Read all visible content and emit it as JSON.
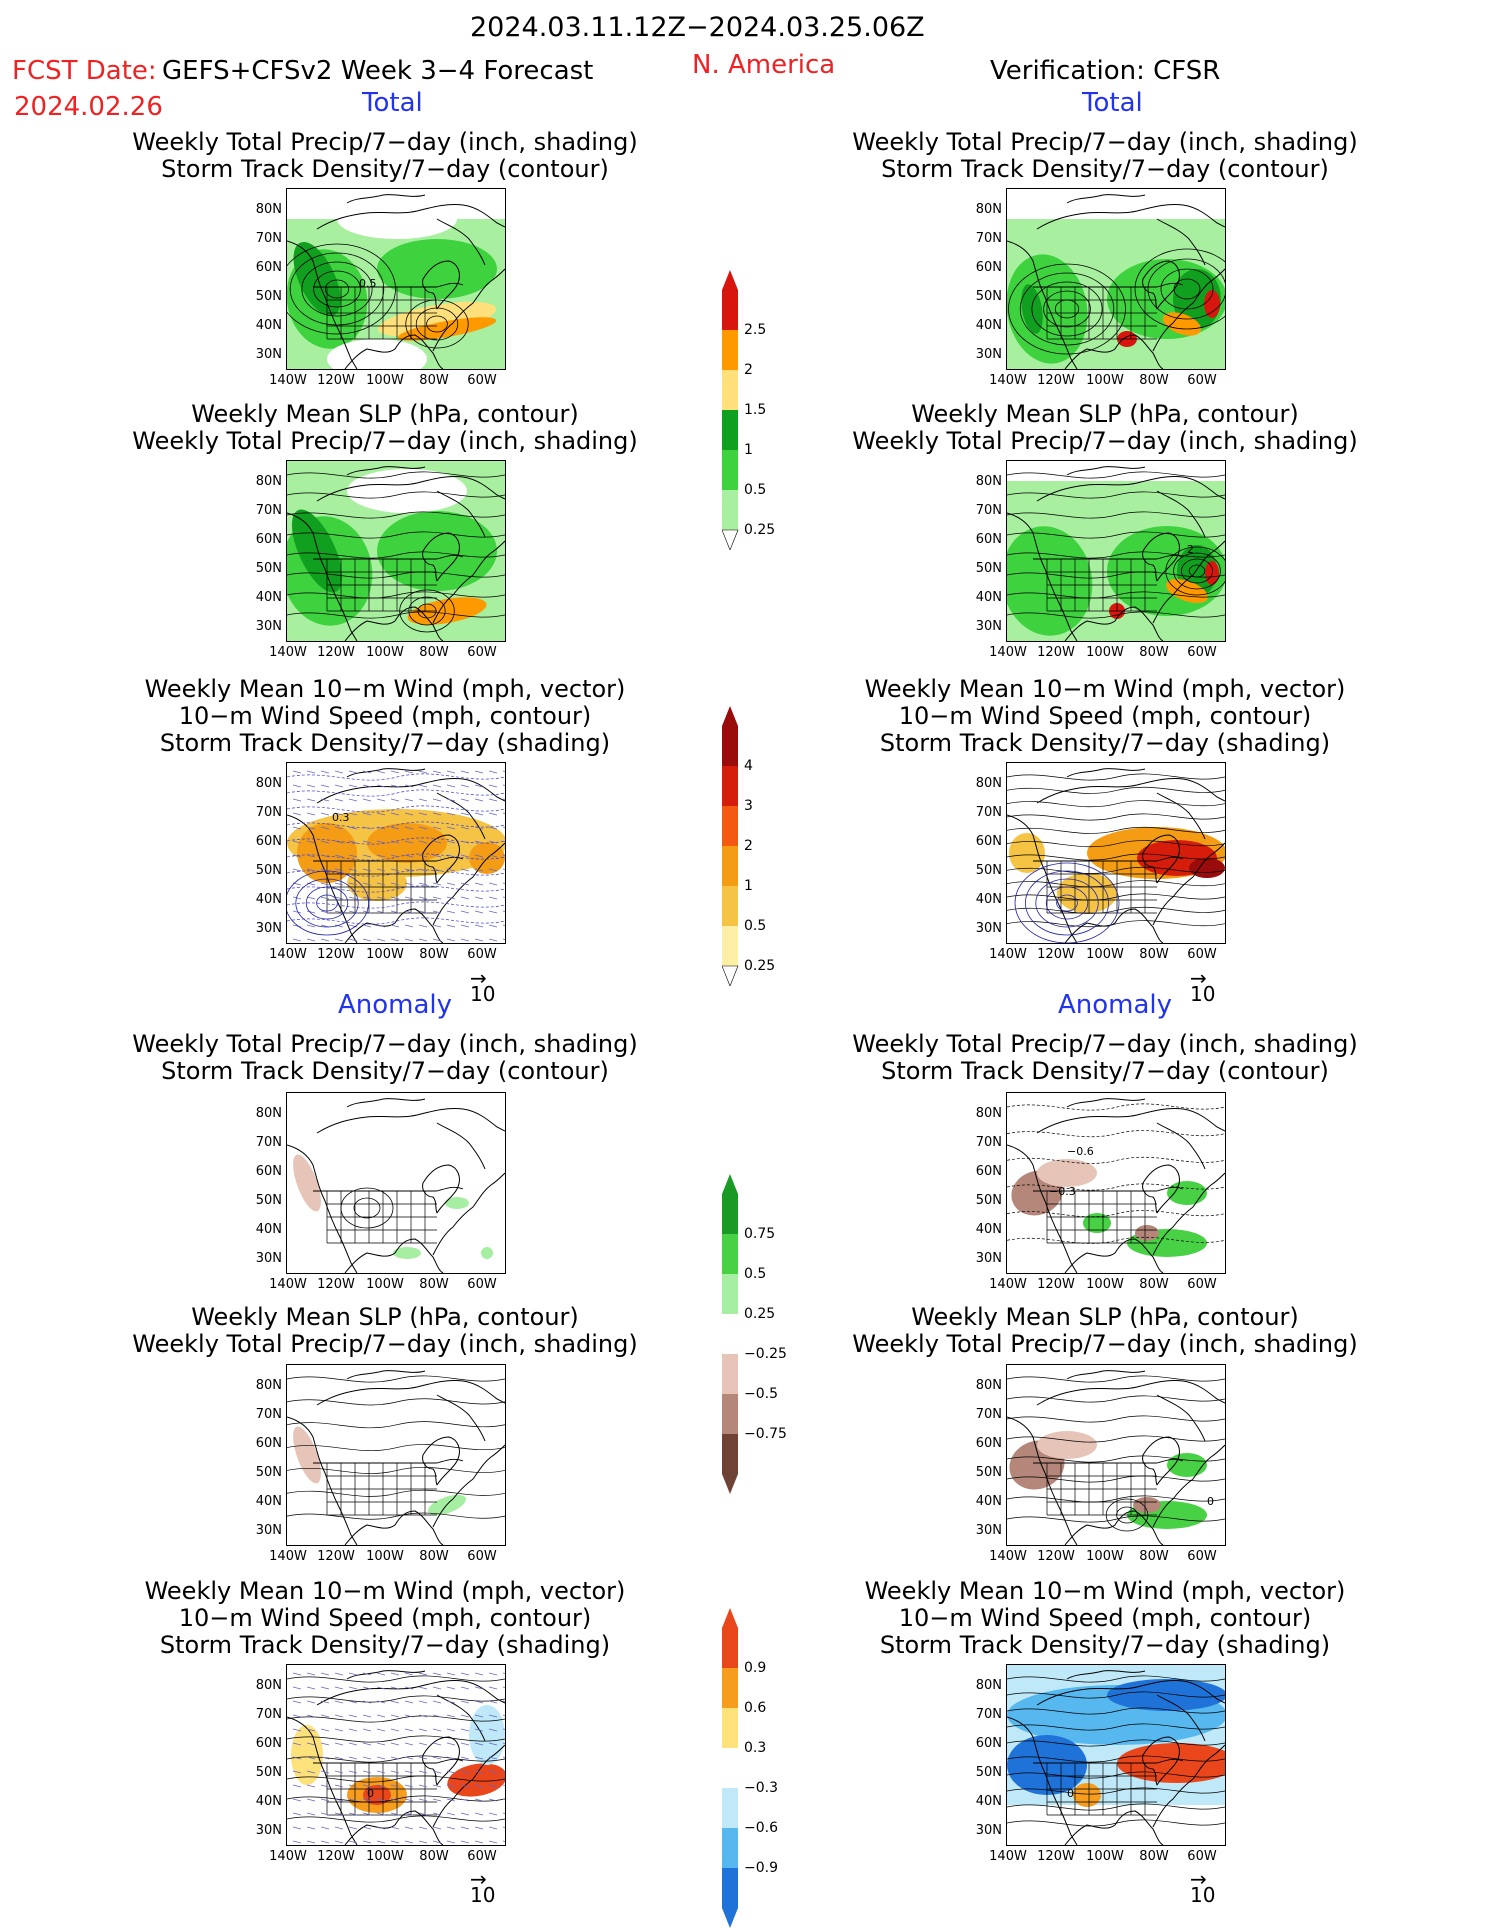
{
  "header": {
    "period": "2024.03.11.12Z−2024.03.25.06Z",
    "fcst_label": "FCST Date:",
    "model": "GEFS+CFSv2 Week 3−4 Forecast",
    "fcst_date": "2024.02.26",
    "region": "N. America",
    "verification": "Verification: CFSR"
  },
  "sections": {
    "total": "Total",
    "anomaly": "Anomaly"
  },
  "titles": {
    "precip_std": [
      "Weekly Total Precip/7−day (inch, shading)",
      "Storm Track Density/7−day (contour)"
    ],
    "slp_precip": [
      "Weekly Mean SLP (hPa, contour)",
      "Weekly Total Precip/7−day (inch, shading)"
    ],
    "wind_std": [
      "Weekly Mean 10−m Wind (mph, vector)",
      "10−m Wind Speed (mph, contour)",
      "Storm Track Density/7−day (shading)"
    ]
  },
  "axes": {
    "lat_ticks": [
      "80N",
      "70N",
      "60N",
      "50N",
      "40N",
      "30N"
    ],
    "lon_ticks": [
      "140W",
      "120W",
      "100W",
      "80W",
      "60W"
    ]
  },
  "vector_ref": "10",
  "colorbars": {
    "precip_total": {
      "labels": [
        "2.5",
        "2",
        "1.5",
        "1",
        "0.5",
        "0.25"
      ],
      "colors": [
        "#d9160d",
        "#ff9900",
        "#ffe07a",
        "#119f1f",
        "#3ed23e",
        "#a8f0a0"
      ]
    },
    "std_total": {
      "labels": [
        "4",
        "3",
        "2",
        "1",
        "0.5",
        "0.25"
      ],
      "colors": [
        "#9a0c0c",
        "#d61d0b",
        "#f25a12",
        "#f39c14",
        "#f6c445",
        "#fdf0a6"
      ]
    },
    "precip_anom": {
      "labels": [
        "0.75",
        "0.5",
        "0.25",
        "−0.25",
        "−0.5",
        "−0.75"
      ],
      "colors": [
        "#1a9a24",
        "#48d145",
        "#a6eea1",
        "#ffffff",
        "#e6c4b8",
        "#b5877a",
        "#6e4336"
      ]
    },
    "std_anom": {
      "labels": [
        "0.9",
        "0.6",
        "0.3",
        "−0.3",
        "−0.6",
        "−0.9"
      ],
      "colors": [
        "#e9461c",
        "#f79d1e",
        "#fde27c",
        "#ffffff",
        "#bfe9f8",
        "#57b8f0",
        "#1f73d8"
      ]
    }
  },
  "annotations": {
    "p1": "0.5",
    "p4": "2",
    "p5": "0.3",
    "p8": "−0.6",
    "p8b": "−0.3",
    "p10": "0",
    "p11": "0",
    "p12": "0"
  }
}
